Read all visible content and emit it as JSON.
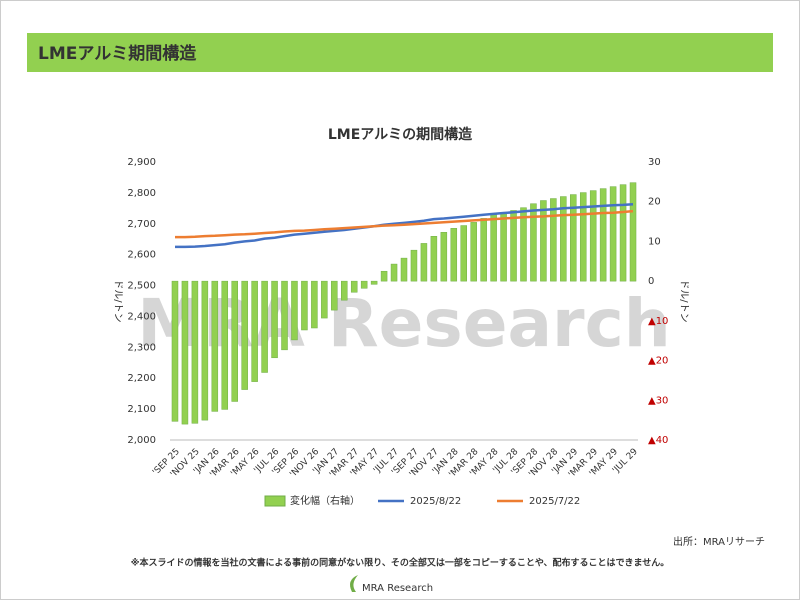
{
  "header": {
    "title": "LMEアルミ期間構造"
  },
  "chart_data": {
    "type": "combo",
    "title": "LMEアルミの期間構造",
    "ylabel": "ドル/トン",
    "y2label": "ドル/トン",
    "watermark": "MRA Research",
    "categories": [
      "'SEP 25",
      null,
      "'NOV 25",
      null,
      "'JAN 26",
      null,
      "'MAR 26",
      null,
      "'MAY 26",
      null,
      "'JUL 26",
      null,
      "'SEP 26",
      null,
      "'NOV 26",
      null,
      "'JAN 27",
      null,
      "'MAR 27",
      null,
      "'MAY 27",
      null,
      "'JUL 27",
      null,
      "'SEP 27",
      null,
      "'NOV 27",
      null,
      "'JAN 28",
      null,
      "'MAR 28",
      null,
      "'MAY 28",
      null,
      "'JUL 28",
      null,
      "'SEP 28",
      null,
      "'NOV 28",
      null,
      "'JAN 29",
      null,
      "'MAR 29",
      null,
      "'MAY 29",
      null,
      "'JUL 29"
    ],
    "series": [
      {
        "name": "変化幅（右軸）",
        "type": "bar",
        "axis": "y2",
        "color": "#92d050",
        "edge": "#70ad47",
        "values": [
          -35.3,
          -36,
          -35.8,
          -35,
          -32.8,
          -32.3,
          -30.3,
          -27.3,
          -25.3,
          -23,
          -19.3,
          -17.3,
          -14.8,
          -12.3,
          -11.8,
          -9.3,
          -7.3,
          -4.8,
          -2.8,
          -1.8,
          -0.8,
          2.5,
          4.3,
          5.8,
          7.8,
          9.5,
          11.3,
          12.3,
          13.3,
          14,
          14.8,
          15.8,
          16.8,
          17.3,
          17.8,
          18.5,
          19.5,
          20.3,
          20.8,
          21.3,
          21.8,
          22.3,
          22.8,
          23.3,
          23.8,
          24.3,
          24.8
        ]
      },
      {
        "name": "2025/8/22",
        "type": "line",
        "axis": "y",
        "color": "#4472c4",
        "values": [
          2625,
          2625,
          2626,
          2628,
          2631,
          2634,
          2639,
          2643,
          2646,
          2652,
          2655,
          2660,
          2665,
          2668,
          2671,
          2674,
          2677,
          2680,
          2684,
          2688,
          2692,
          2697,
          2700,
          2703,
          2706,
          2710,
          2715,
          2717,
          2720,
          2723,
          2726,
          2729,
          2732,
          2735,
          2737,
          2740,
          2743,
          2745,
          2747,
          2750,
          2752,
          2754,
          2756,
          2758,
          2760,
          2761,
          2763
        ]
      },
      {
        "name": "2025/7/22",
        "type": "line",
        "axis": "y",
        "color": "#ed7d31",
        "values": [
          2657,
          2657,
          2658,
          2660,
          2661,
          2663,
          2665,
          2666,
          2668,
          2670,
          2672,
          2675,
          2677,
          2678,
          2680,
          2682,
          2684,
          2686,
          2688,
          2690,
          2692,
          2694,
          2695,
          2697,
          2699,
          2701,
          2703,
          2705,
          2707,
          2709,
          2711,
          2713,
          2715,
          2717,
          2719,
          2721,
          2723,
          2724,
          2726,
          2728,
          2729,
          2731,
          2733,
          2735,
          2736,
          2738,
          2741
        ]
      }
    ],
    "ylim": [
      2000,
      2900
    ],
    "yticks": [
      {
        "value": 2000,
        "label": "2,000"
      },
      {
        "value": 2100,
        "label": "2,100"
      },
      {
        "value": 2200,
        "label": "2,200"
      },
      {
        "value": 2300,
        "label": "2,300"
      },
      {
        "value": 2400,
        "label": "2,400"
      },
      {
        "value": 2500,
        "label": "2,500"
      },
      {
        "value": 2600,
        "label": "2,600"
      },
      {
        "value": 2700,
        "label": "2,700"
      },
      {
        "value": 2800,
        "label": "2,800"
      },
      {
        "value": 2900,
        "label": "2,900"
      }
    ],
    "y2lim": [
      -40,
      30
    ],
    "y2ticks": [
      {
        "value": -40,
        "label": "▲40"
      },
      {
        "value": -30,
        "label": "▲30"
      },
      {
        "value": -20,
        "label": "▲20"
      },
      {
        "value": -10,
        "label": "▲10"
      },
      0,
      10,
      20,
      30
    ],
    "negative_tick_color": "#c00000",
    "grid": false,
    "legend": "bottom"
  },
  "source": "出所：MRAリサーチ",
  "footnote": "※本スライドの情報を当社の文書による事前の同意がない限り、その全部又は一部をコピーすることや、配布することはできません。",
  "logo": "MRA Research"
}
